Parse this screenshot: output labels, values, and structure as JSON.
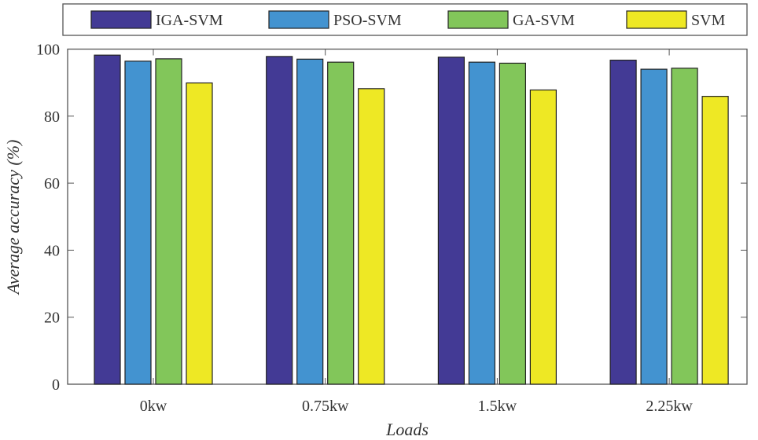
{
  "chart_data": {
    "type": "bar",
    "title": "",
    "xlabel": "Loads",
    "ylabel": "Average accuracy (%)",
    "ylim": [
      0,
      100
    ],
    "yticks": [
      0,
      20,
      40,
      60,
      80,
      100
    ],
    "categories": [
      "0kw",
      "0.75kw",
      "1.5kw",
      "2.25kw"
    ],
    "legend_position": "top",
    "series": [
      {
        "name": "IGA-SVM",
        "color": "#433a95",
        "values": [
          98.2,
          97.8,
          97.6,
          96.7
        ]
      },
      {
        "name": "PSO-SVM",
        "color": "#4393d0",
        "values": [
          96.4,
          97.0,
          96.1,
          94.0
        ]
      },
      {
        "name": "GA-SVM",
        "color": "#82c65a",
        "values": [
          97.1,
          96.1,
          95.8,
          94.3
        ]
      },
      {
        "name": "SVM",
        "color": "#eee824",
        "values": [
          89.9,
          88.2,
          87.8,
          85.9
        ]
      }
    ]
  }
}
